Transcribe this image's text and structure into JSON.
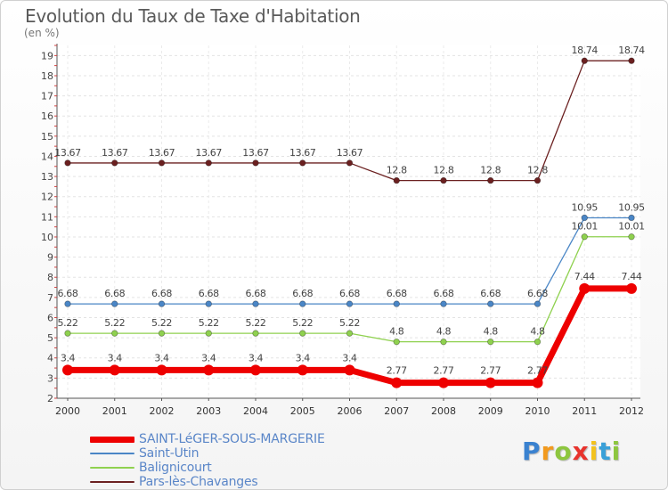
{
  "title": "Evolution du Taux de Taxe d'Habitation",
  "unit": "(en %)",
  "logo": {
    "letters": [
      {
        "char": "P",
        "color": "#3a82d0"
      },
      {
        "char": "r",
        "color": "#f29a1e"
      },
      {
        "char": "o",
        "color": "#8dc63f"
      },
      {
        "char": "x",
        "color": "#e8332d"
      },
      {
        "char": "i",
        "color": "#f2c21e"
      },
      {
        "char": "t",
        "color": "#3aa0d8"
      },
      {
        "char": "i",
        "color": "#8dc63f"
      }
    ]
  },
  "chart_data": {
    "type": "line",
    "title": "Evolution du Taux de Taxe d'Habitation",
    "ylabel": "(en %)",
    "xlabel": "",
    "ylim": [
      2,
      19.5
    ],
    "yticks": [
      2,
      3,
      4,
      5,
      6,
      7,
      8,
      9,
      10,
      11,
      12,
      13,
      14,
      15,
      16,
      17,
      18,
      19
    ],
    "x": [
      "2000",
      "2001",
      "2002",
      "2003",
      "2004",
      "2005",
      "2006",
      "2007",
      "2008",
      "2009",
      "2010",
      "2011",
      "2012"
    ],
    "grid": true,
    "series": [
      {
        "name": "Pars-lès-Chavanges",
        "color": "#6b2020",
        "values": [
          13.67,
          13.67,
          13.67,
          13.67,
          13.67,
          13.67,
          13.67,
          12.8,
          12.8,
          12.8,
          12.8,
          18.74,
          18.74
        ],
        "labels": [
          "13.67",
          "13.67",
          "13.67",
          "13.67",
          "13.67",
          "13.67",
          "13.67",
          "12.8",
          "12.8",
          "12.8",
          "12.8",
          "18.74",
          "18.74"
        ]
      },
      {
        "name": "Saint-Utin",
        "color": "#4a86c6",
        "values": [
          6.68,
          6.68,
          6.68,
          6.68,
          6.68,
          6.68,
          6.68,
          6.68,
          6.68,
          6.68,
          6.68,
          10.95,
          10.95
        ],
        "labels": [
          "6.68",
          "6.68",
          "6.68",
          "6.68",
          "6.68",
          "6.68",
          "6.68",
          "6.68",
          "6.68",
          "6.68",
          "6.68",
          "10.95",
          "10.95"
        ]
      },
      {
        "name": "Balignicourt",
        "color": "#8fd14f",
        "values": [
          5.22,
          5.22,
          5.22,
          5.22,
          5.22,
          5.22,
          5.22,
          4.8,
          4.8,
          4.8,
          4.8,
          10.01,
          10.01
        ],
        "labels": [
          "5.22",
          "5.22",
          "5.22",
          "5.22",
          "5.22",
          "5.22",
          "5.22",
          "4.8",
          "4.8",
          "4.8",
          "4.8",
          "10.01",
          "10.01"
        ]
      },
      {
        "name": "SAINT-LéGER-SOUS-MARGERIE",
        "color": "#ee0000",
        "values": [
          3.4,
          3.4,
          3.4,
          3.4,
          3.4,
          3.4,
          3.4,
          2.77,
          2.77,
          2.77,
          2.77,
          7.44,
          7.44
        ],
        "labels": [
          "3.4",
          "3.4",
          "3.4",
          "3.4",
          "3.4",
          "3.4",
          "3.4",
          "2.77",
          "2.77",
          "2.77",
          "2.77",
          "7.44",
          "7.44"
        ]
      }
    ],
    "legend": [
      {
        "name": "SAINT-LéGER-SOUS-MARGERIE",
        "color": "#ee0000",
        "weight": "thick"
      },
      {
        "name": "Saint-Utin",
        "color": "#4a86c6",
        "weight": "thin"
      },
      {
        "name": "Balignicourt",
        "color": "#8fd14f",
        "weight": "thin"
      },
      {
        "name": "Pars-lès-Chavanges",
        "color": "#6b2020",
        "weight": "thin"
      }
    ],
    "legend_position": "bottom-left"
  }
}
